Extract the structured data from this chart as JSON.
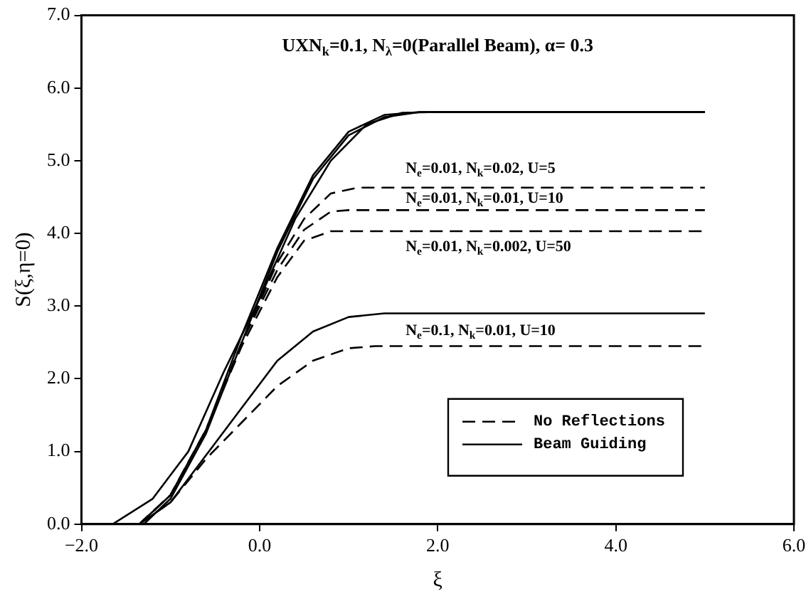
{
  "chart_data": {
    "type": "line",
    "title": "UXN$_{k}$=0.1, N$_{λ}$=0(Parallel Beam), α= 0.3",
    "xlabel": "ξ",
    "ylabel": "S(ξ,η=0)",
    "xlim": [
      -2,
      6
    ],
    "xticks": [
      {
        "value": -2,
        "label": "−2.0"
      },
      {
        "value": 0,
        "label": "0.0"
      },
      {
        "value": 2,
        "label": "2.0"
      },
      {
        "value": 4,
        "label": "4.0"
      },
      {
        "value": 6,
        "label": "6.0"
      }
    ],
    "ylim": [
      0,
      7
    ],
    "yticks": [
      {
        "value": 0,
        "label": "0.0"
      },
      {
        "value": 1,
        "label": "1.0"
      },
      {
        "value": 2,
        "label": "2.0"
      },
      {
        "value": 3,
        "label": "3.0"
      },
      {
        "value": 4,
        "label": "4.0"
      },
      {
        "value": 5,
        "label": "5.0"
      },
      {
        "value": 6,
        "label": "6.0"
      },
      {
        "value": 7,
        "label": "7.0"
      }
    ],
    "grid": false,
    "legend": "bottom right",
    "marker": "none",
    "series": [
      {
        "name": "No Reflections",
        "color": "#000000",
        "line_style": "dashed",
        "x": [
          -1.35,
          -1.0,
          -0.6,
          -0.2,
          0.2,
          0.5,
          0.8,
          1.1,
          5.0
        ],
        "values": [
          0,
          0.4,
          1.3,
          2.5,
          3.6,
          4.2,
          4.55,
          4.63,
          4.63
        ]
      },
      {
        "name": "Beam Guiding",
        "color": "#000000",
        "line_style": "solid",
        "x": [
          -1.65,
          -1.2,
          -0.8,
          -0.4,
          0,
          0.4,
          0.8,
          1.2,
          1.6,
          2.0,
          5.0
        ],
        "values": [
          0,
          0.35,
          1.0,
          2.1,
          3.1,
          4.2,
          5.0,
          5.5,
          5.66,
          5.67,
          5.67
        ]
      },
      {
        "color": "#000000",
        "line_style": "solid",
        "x": [
          -1.35,
          -1.0,
          -0.6,
          -0.2,
          0.2,
          0.6,
          1.0,
          1.4,
          1.8,
          5.0
        ],
        "values": [
          0,
          0.4,
          1.3,
          2.6,
          3.8,
          4.8,
          5.4,
          5.63,
          5.67,
          5.67
        ]
      },
      {
        "color": "#000000",
        "line_style": "solid",
        "x": [
          -1.3,
          -1.0,
          -0.6,
          -0.2,
          0.2,
          0.6,
          1.0,
          1.4,
          1.8,
          5.0
        ],
        "values": [
          0,
          0.35,
          1.25,
          2.5,
          3.75,
          4.75,
          5.35,
          5.6,
          5.67,
          5.67
        ]
      },
      {
        "color": "#000000",
        "line_style": "dashed",
        "x": [
          -1.35,
          -1.0,
          -0.6,
          -0.2,
          0.2,
          0.5,
          0.8,
          1.0,
          5.0
        ],
        "values": [
          0,
          0.4,
          1.3,
          2.5,
          3.5,
          4.05,
          4.3,
          4.32,
          4.32
        ]
      },
      {
        "color": "#000000",
        "line_style": "dashed",
        "x": [
          -1.35,
          -1.0,
          -0.6,
          -0.2,
          0.2,
          0.5,
          0.8,
          5.0
        ],
        "values": [
          0,
          0.4,
          1.3,
          2.45,
          3.4,
          3.9,
          4.03,
          4.03
        ]
      },
      {
        "color": "#000000",
        "line_style": "solid",
        "x": [
          -1.35,
          -1.0,
          -0.6,
          -0.2,
          0.2,
          0.6,
          1.0,
          1.4,
          5.0
        ],
        "values": [
          0,
          0.3,
          0.95,
          1.6,
          2.25,
          2.65,
          2.85,
          2.9,
          2.9
        ]
      },
      {
        "color": "#000000",
        "line_style": "dashed",
        "x": [
          -1.35,
          -1.0,
          -0.6,
          -0.2,
          0.2,
          0.6,
          1.0,
          1.3,
          5.0
        ],
        "values": [
          0,
          0.3,
          0.9,
          1.4,
          1.9,
          2.25,
          2.42,
          2.45,
          2.45
        ]
      }
    ],
    "annotations": [
      "N$_{e}$=0.01, N$_{k}$=0.02, U=5",
      "N$_{e}$=0.01, N$_{k}$=0.01, U=10",
      "N$_{e}$=0.01, N$_{k}$=0.002, U=50",
      "N$_{e}$=0.1, N$_{k}$=0.01, U=10"
    ]
  }
}
